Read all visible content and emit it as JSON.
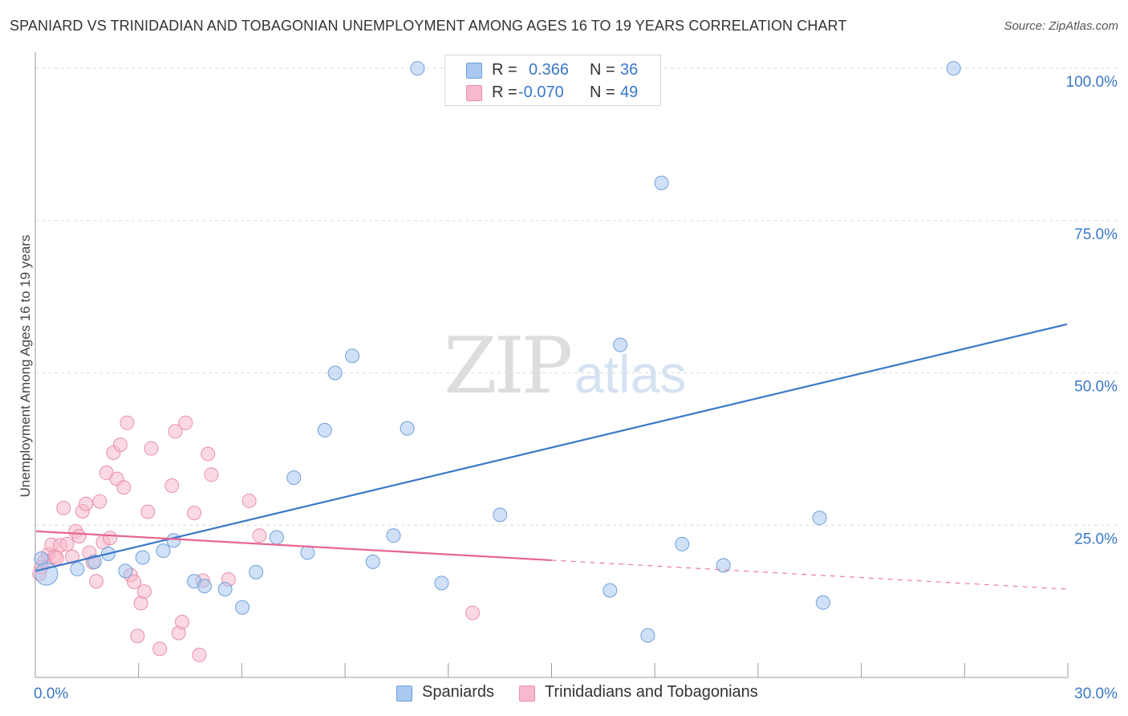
{
  "header": {
    "title": "SPANIARD VS TRINIDADIAN AND TOBAGONIAN UNEMPLOYMENT AMONG AGES 16 TO 19 YEARS CORRELATION CHART",
    "source": "Source: ZipAtlas.com"
  },
  "watermark": {
    "zip": "ZIP",
    "atlas": "atlas"
  },
  "legend": {
    "rows": [
      {
        "r_label": "R =",
        "r_value": "0.366",
        "n_label": "N =",
        "n_value": "36",
        "color": "#a9c9f1"
      },
      {
        "r_label": "R =",
        "r_value": "-0.070",
        "n_label": "N =",
        "n_value": "49",
        "color": "#f7b9cb"
      }
    ]
  },
  "bottom_legend": {
    "spaniards": "Spaniards",
    "trinidadians": "Trinidadians and Tobagonians"
  },
  "colors": {
    "blue_fill": "#a9c9f1",
    "blue_stroke": "#6f9fd8",
    "blue_line": "#3a78c9",
    "pink_fill": "#f7b9cb",
    "pink_stroke": "#e88fac",
    "pink_line": "#e8658f",
    "grid": "#d9d9d9",
    "tick_label": "#3a78c9"
  },
  "chart_data": {
    "type": "scatter",
    "title": "SPANIARD VS TRINIDADIAN AND TOBAGONIAN UNEMPLOYMENT AMONG AGES 16 TO 19 YEARS CORRELATION CHART",
    "xlabel": "",
    "ylabel": "Unemployment Among Ages 16 to 19 years",
    "xlim": [
      0,
      30
    ],
    "ylim": [
      0,
      102
    ],
    "x_tick_labels": [
      {
        "value": 0,
        "label": "0.0%"
      },
      {
        "value": 30,
        "label": "30.0%"
      }
    ],
    "y_tick_labels": [
      {
        "value": 25,
        "label": "25.0%"
      },
      {
        "value": 50,
        "label": "50.0%"
      },
      {
        "value": 75,
        "label": "75.0%"
      },
      {
        "value": 100,
        "label": "100.0%"
      }
    ],
    "grid": true,
    "legend_position": "top-center",
    "series": [
      {
        "name": "Spaniards",
        "r": 0.366,
        "n": 36,
        "trend": {
          "x": [
            0,
            30
          ],
          "y": [
            17.5,
            58
          ]
        },
        "points": [
          {
            "x": 0.15,
            "y": 19.5
          },
          {
            "x": 0.3,
            "y": 17.0,
            "big": true
          },
          {
            "x": 1.2,
            "y": 17.8
          },
          {
            "x": 1.7,
            "y": 19.0
          },
          {
            "x": 2.1,
            "y": 20.3
          },
          {
            "x": 2.6,
            "y": 17.5
          },
          {
            "x": 3.1,
            "y": 19.7
          },
          {
            "x": 3.7,
            "y": 20.8
          },
          {
            "x": 4.0,
            "y": 22.5
          },
          {
            "x": 4.6,
            "y": 15.8
          },
          {
            "x": 4.9,
            "y": 15.0
          },
          {
            "x": 5.5,
            "y": 14.5
          },
          {
            "x": 6.0,
            "y": 11.5
          },
          {
            "x": 6.4,
            "y": 17.3
          },
          {
            "x": 7.0,
            "y": 23.0
          },
          {
            "x": 7.5,
            "y": 32.8
          },
          {
            "x": 7.9,
            "y": 20.5
          },
          {
            "x": 8.4,
            "y": 40.6
          },
          {
            "x": 8.7,
            "y": 50.0
          },
          {
            "x": 9.2,
            "y": 52.8
          },
          {
            "x": 9.8,
            "y": 19.0
          },
          {
            "x": 10.4,
            "y": 23.3
          },
          {
            "x": 10.8,
            "y": 40.9
          },
          {
            "x": 11.1,
            "y": 100.0
          },
          {
            "x": 11.8,
            "y": 15.5
          },
          {
            "x": 12.3,
            "y": 100.0
          },
          {
            "x": 13.5,
            "y": 26.7
          },
          {
            "x": 16.7,
            "y": 14.3
          },
          {
            "x": 17.0,
            "y": 54.6
          },
          {
            "x": 17.8,
            "y": 6.9
          },
          {
            "x": 18.2,
            "y": 81.2
          },
          {
            "x": 18.8,
            "y": 21.9
          },
          {
            "x": 20.0,
            "y": 18.4
          },
          {
            "x": 22.8,
            "y": 26.2
          },
          {
            "x": 22.9,
            "y": 12.3
          },
          {
            "x": 26.7,
            "y": 100.0
          }
        ]
      },
      {
        "name": "Trinidadians and Tobagonians",
        "r": -0.07,
        "n": 49,
        "trend": {
          "x": [
            0,
            30
          ],
          "y": [
            24.0,
            14.5
          ],
          "solid_until_x": 15
        },
        "points": [
          {
            "x": 0.1,
            "y": 17.0
          },
          {
            "x": 0.25,
            "y": 19.2
          },
          {
            "x": 0.35,
            "y": 20.2
          },
          {
            "x": 0.45,
            "y": 21.8
          },
          {
            "x": 0.55,
            "y": 19.9
          },
          {
            "x": 0.7,
            "y": 21.7
          },
          {
            "x": 0.8,
            "y": 27.8
          },
          {
            "x": 0.9,
            "y": 21.9
          },
          {
            "x": 1.05,
            "y": 19.8
          },
          {
            "x": 1.15,
            "y": 24.0
          },
          {
            "x": 1.25,
            "y": 23.2
          },
          {
            "x": 1.35,
            "y": 27.3
          },
          {
            "x": 1.45,
            "y": 28.5
          },
          {
            "x": 1.55,
            "y": 20.5
          },
          {
            "x": 1.65,
            "y": 18.9
          },
          {
            "x": 1.75,
            "y": 15.8
          },
          {
            "x": 1.85,
            "y": 28.9
          },
          {
            "x": 1.95,
            "y": 22.2
          },
          {
            "x": 2.05,
            "y": 33.6
          },
          {
            "x": 2.15,
            "y": 22.9
          },
          {
            "x": 2.25,
            "y": 36.9
          },
          {
            "x": 2.35,
            "y": 32.6
          },
          {
            "x": 2.45,
            "y": 38.2
          },
          {
            "x": 2.55,
            "y": 31.2
          },
          {
            "x": 2.65,
            "y": 41.8
          },
          {
            "x": 2.75,
            "y": 16.8
          },
          {
            "x": 2.85,
            "y": 15.7
          },
          {
            "x": 2.95,
            "y": 6.8
          },
          {
            "x": 3.05,
            "y": 12.2
          },
          {
            "x": 3.15,
            "y": 14.1
          },
          {
            "x": 3.25,
            "y": 27.2
          },
          {
            "x": 3.35,
            "y": 37.6
          },
          {
            "x": 3.6,
            "y": 4.7
          },
          {
            "x": 3.95,
            "y": 31.5
          },
          {
            "x": 4.05,
            "y": 40.4
          },
          {
            "x": 4.15,
            "y": 7.3
          },
          {
            "x": 4.25,
            "y": 9.1
          },
          {
            "x": 4.35,
            "y": 41.8
          },
          {
            "x": 4.6,
            "y": 27.0
          },
          {
            "x": 4.75,
            "y": 3.7
          },
          {
            "x": 4.85,
            "y": 15.9
          },
          {
            "x": 5.0,
            "y": 36.7
          },
          {
            "x": 5.1,
            "y": 33.3
          },
          {
            "x": 5.6,
            "y": 16.1
          },
          {
            "x": 6.2,
            "y": 29.0
          },
          {
            "x": 6.5,
            "y": 23.3
          },
          {
            "x": 12.7,
            "y": 10.6
          },
          {
            "x": 0.15,
            "y": 18.1
          },
          {
            "x": 0.6,
            "y": 19.6
          }
        ]
      }
    ]
  }
}
